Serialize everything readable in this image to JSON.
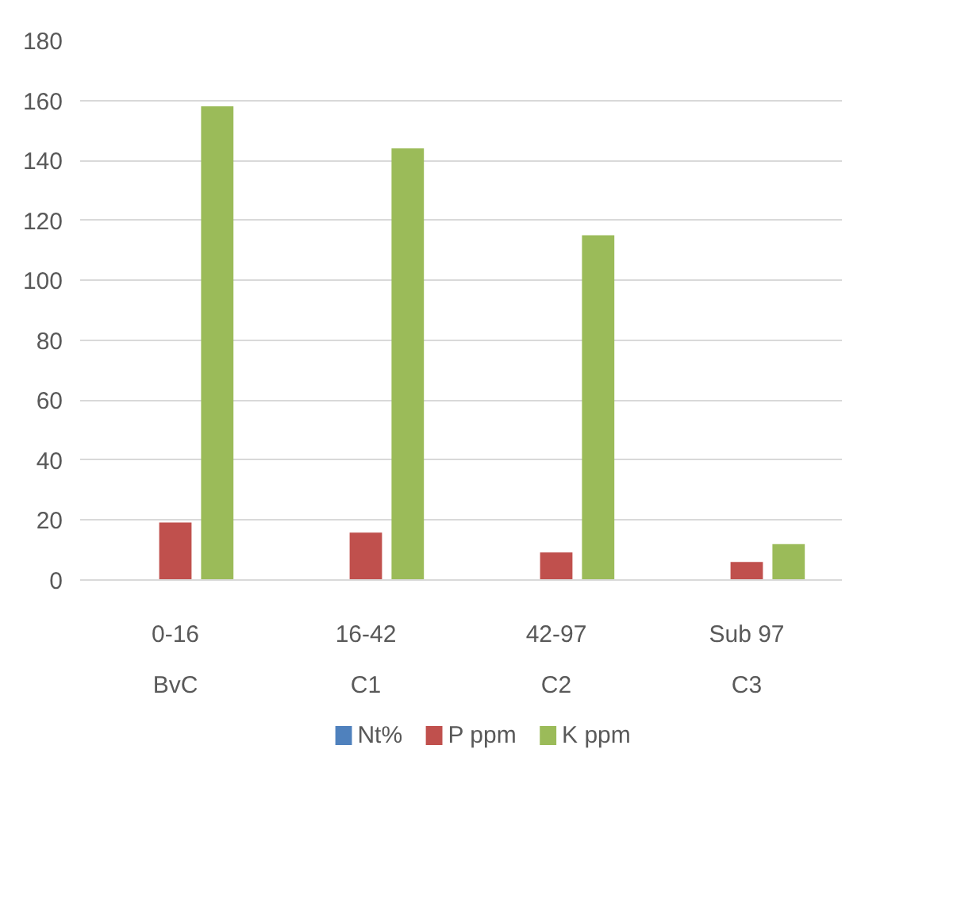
{
  "chart_data": {
    "type": "bar",
    "categories": [
      "0-16\nBvC",
      "16-42\nC1",
      "42-97\nC2",
      "Sub 97\nC3"
    ],
    "series": [
      {
        "name": "Nt%",
        "color": "#4f81bd",
        "values": [
          null,
          null,
          null,
          null
        ]
      },
      {
        "name": "P ppm",
        "color": "#c0504d",
        "values": [
          19.2,
          15.8,
          9.2,
          6
        ]
      },
      {
        "name": "K ppm",
        "color": "#9bbb59",
        "values": [
          158,
          144,
          115,
          12
        ]
      }
    ],
    "ylim": [
      0,
      180
    ],
    "yticks": [
      0,
      20,
      40,
      60,
      80,
      100,
      120,
      140,
      160,
      180
    ],
    "grid": "y",
    "legend": "bottom"
  }
}
